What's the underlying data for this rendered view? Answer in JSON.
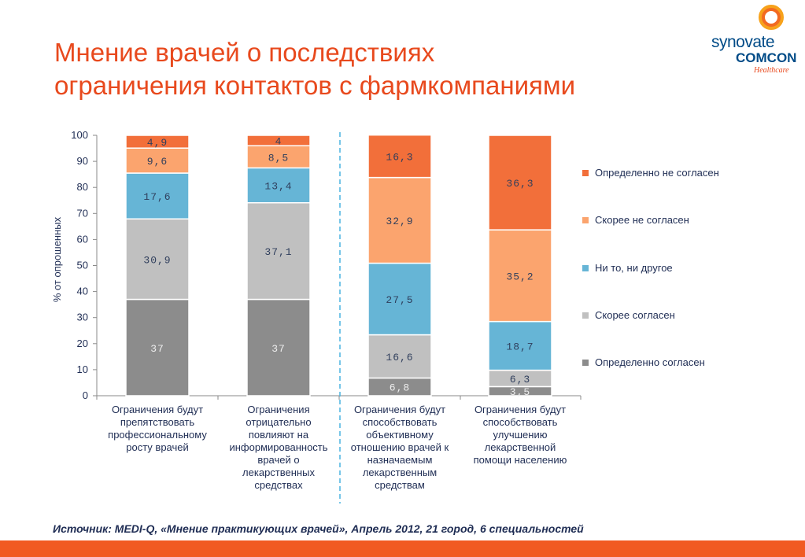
{
  "title": {
    "line1": "Мнение врачей о последствиях",
    "line2": "ограничения контактов с фармкомпаниями"
  },
  "logo": {
    "main": "synovate",
    "sub": "COMCON",
    "tagline": "Healthcare"
  },
  "source": "Источник:  MEDI-Q, «Мнение практикующих врачей», Апрель 2012, 21 город, 6 специальностей",
  "chart_data": {
    "type": "bar",
    "stacked": true,
    "ylabel": "% от опрошенных",
    "ylim": [
      0,
      100
    ],
    "yticks": [
      "0",
      "10",
      "20",
      "30",
      "40",
      "50",
      "60",
      "70",
      "80",
      "90",
      "100"
    ],
    "categories": [
      "Ограничения будут препятствовать профессиональному росту врачей",
      "Ограничения отрицательно повлияют на информированность врачей о лекарственных средствах",
      "Ограничения будут способствовать объективному отношению врачей к назначаемым лекарственным средствам",
      "Ограничения будут способствовать улучшению лекарственной помощи населению"
    ],
    "category_lines": [
      [
        "Ограничения будут",
        "препятствовать",
        "профессиональному",
        "росту врачей"
      ],
      [
        "Ограничения",
        "отрицательно",
        "повлияют на",
        "информированность",
        "врачей о",
        "лекарственных",
        "средствах"
      ],
      [
        "Ограничения будут",
        "способствовать",
        "объективному",
        "отношению врачей к",
        "назначаемым",
        "лекарственным",
        "средствам"
      ],
      [
        "Ограничения будут",
        "способствовать",
        "улучшению",
        "лекарственной",
        "помощи населению"
      ]
    ],
    "series": [
      {
        "name": "Определенно согласен",
        "color": "#8c8c8c",
        "values": [
          37,
          37,
          6.8,
          3.5
        ],
        "labels": [
          "37",
          "37",
          "6,8",
          "3,5"
        ]
      },
      {
        "name": "Скорее  согласен",
        "color": "#c0c0c0",
        "values": [
          30.9,
          37.1,
          16.6,
          6.3
        ],
        "labels": [
          "30,9",
          "37,1",
          "16,6",
          "6,3"
        ]
      },
      {
        "name": "Ни то, ни другое",
        "color": "#66b5d6",
        "values": [
          17.6,
          13.4,
          27.5,
          18.7
        ],
        "labels": [
          "17,6",
          "13,4",
          "27,5",
          "18,7"
        ]
      },
      {
        "name": "Скорее не согласен",
        "color": "#fba46e",
        "values": [
          9.6,
          8.5,
          32.9,
          35.2
        ],
        "labels": [
          "9,6",
          "8,5",
          "32,9",
          "35,2"
        ]
      },
      {
        "name": "Определенно не согласен",
        "color": "#f26f3a",
        "values": [
          4.9,
          4,
          16.3,
          36.3
        ],
        "labels": [
          "4,9",
          "4",
          "16,3",
          "36,3"
        ]
      }
    ],
    "legend_order": [
      "Определенно не согласен",
      "Скорее не согласен",
      "Ни то, ни другое",
      "Скорее  согласен",
      "Определенно согласен"
    ],
    "legend_position": "right",
    "separator_after_category": 2,
    "grid": false
  }
}
